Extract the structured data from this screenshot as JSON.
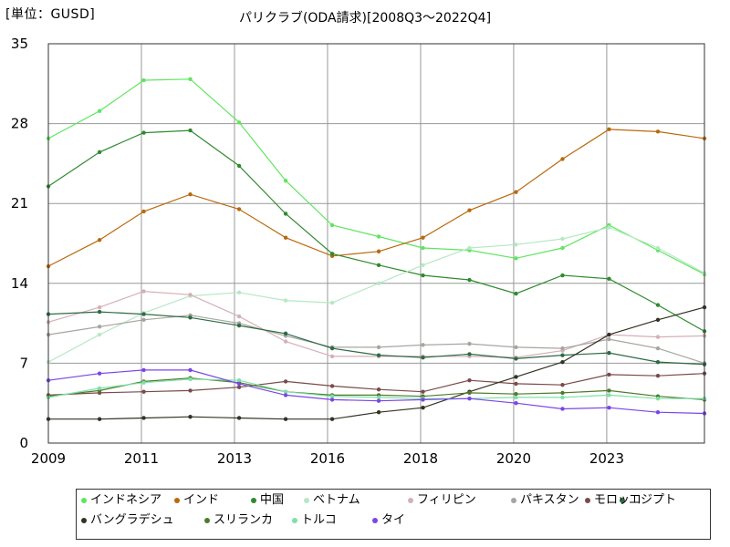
{
  "chart_data": {
    "type": "line",
    "title": "パリクラブ(ODA請求)[2008Q3～2022Q4]",
    "unit_label": "[単位：GUSD]",
    "xlabel": "",
    "ylabel": "",
    "x": [
      2008.5,
      2009.6,
      2010.55,
      2011.55,
      2012.6,
      2013.6,
      2014.6,
      2015.6,
      2016.55,
      2017.55,
      2018.55,
      2019.55,
      2020.55,
      2021.6,
      2022.6
    ],
    "xlim": [
      2008.5,
      2022.6
    ],
    "x_ticks": [
      {
        "value": 2008.5,
        "label": "2009"
      },
      {
        "value": 2010.5,
        "label": "2011"
      },
      {
        "value": 2012.5,
        "label": "2013"
      },
      {
        "value": 2014.5,
        "label": "2016"
      },
      {
        "value": 2016.5,
        "label": "2018"
      },
      {
        "value": 2018.5,
        "label": "2020"
      },
      {
        "value": 2020.5,
        "label": "2023"
      }
    ],
    "ylim": [
      0,
      35
    ],
    "y_ticks": [
      0,
      7,
      14,
      21,
      28,
      35
    ],
    "grid": true,
    "legend_position": "bottom",
    "series": [
      {
        "name": "インドネシア",
        "color": "#5ee65e",
        "values": [
          26.7,
          29.1,
          31.8,
          31.9,
          28.1,
          23.0,
          19.1,
          18.1,
          17.1,
          16.9,
          16.2,
          17.1,
          19.1,
          16.9,
          14.8
        ]
      },
      {
        "name": "インド",
        "color": "#b8690d",
        "values": [
          15.5,
          17.8,
          20.3,
          21.8,
          20.5,
          18.0,
          16.4,
          16.8,
          18.0,
          20.4,
          22.0,
          24.9,
          27.5,
          27.3,
          26.7
        ]
      },
      {
        "name": "中国",
        "color": "#2f8a2f",
        "values": [
          22.5,
          25.5,
          27.2,
          27.4,
          24.3,
          20.1,
          16.6,
          15.6,
          14.7,
          14.3,
          13.1,
          14.7,
          14.4,
          12.1,
          9.8
        ]
      },
      {
        "name": "ベトナム",
        "color": "#b6e8c4",
        "values": [
          7.1,
          9.5,
          11.4,
          12.9,
          13.2,
          12.5,
          12.3,
          14.0,
          15.6,
          17.1,
          17.4,
          17.9,
          18.9,
          17.1,
          14.9
        ]
      },
      {
        "name": "フィリピン",
        "color": "#d4b0b8",
        "values": [
          10.6,
          11.9,
          13.3,
          13.0,
          11.1,
          8.9,
          7.6,
          7.6,
          7.6,
          7.6,
          7.5,
          8.1,
          9.5,
          9.3,
          9.4
        ]
      },
      {
        "name": "パキスタン",
        "color": "#a6a6a0",
        "values": [
          9.5,
          10.2,
          10.8,
          11.2,
          10.5,
          9.4,
          8.4,
          8.4,
          8.6,
          8.7,
          8.4,
          8.3,
          9.1,
          8.3,
          7.0
        ]
      },
      {
        "name": "エジプト",
        "color": "#2e6a44",
        "values": [
          11.3,
          11.5,
          11.3,
          11.0,
          10.3,
          9.6,
          8.3,
          7.7,
          7.5,
          7.8,
          7.4,
          7.7,
          7.9,
          7.1,
          6.9
        ]
      },
      {
        "name": "モロッコ",
        "color": "#7a4a4a",
        "values": [
          4.2,
          4.4,
          4.5,
          4.6,
          4.9,
          5.4,
          5.0,
          4.7,
          4.5,
          5.5,
          5.2,
          5.1,
          6.0,
          5.9,
          6.1
        ]
      },
      {
        "name": "バングラデシュ",
        "color": "#333322",
        "values": [
          2.1,
          2.1,
          2.2,
          2.3,
          2.2,
          2.1,
          2.1,
          2.7,
          3.1,
          4.5,
          5.8,
          7.1,
          9.5,
          10.8,
          11.9
        ]
      },
      {
        "name": "スリランカ",
        "color": "#4e7a2a",
        "values": [
          4.1,
          4.6,
          5.4,
          5.7,
          5.3,
          4.5,
          4.2,
          4.2,
          4.1,
          4.4,
          4.3,
          4.4,
          4.6,
          4.1,
          3.8
        ]
      },
      {
        "name": "トルコ",
        "color": "#7ee0a8",
        "values": [
          4.0,
          4.8,
          5.3,
          5.6,
          5.5,
          4.5,
          4.1,
          4.0,
          3.9,
          3.9,
          4.0,
          4.0,
          4.2,
          3.9,
          3.9
        ]
      },
      {
        "name": "タイ",
        "color": "#7a45e8",
        "values": [
          5.5,
          6.1,
          6.4,
          6.4,
          5.2,
          4.2,
          3.8,
          3.7,
          3.8,
          3.9,
          3.5,
          3.0,
          3.1,
          2.7,
          2.6
        ]
      }
    ]
  }
}
